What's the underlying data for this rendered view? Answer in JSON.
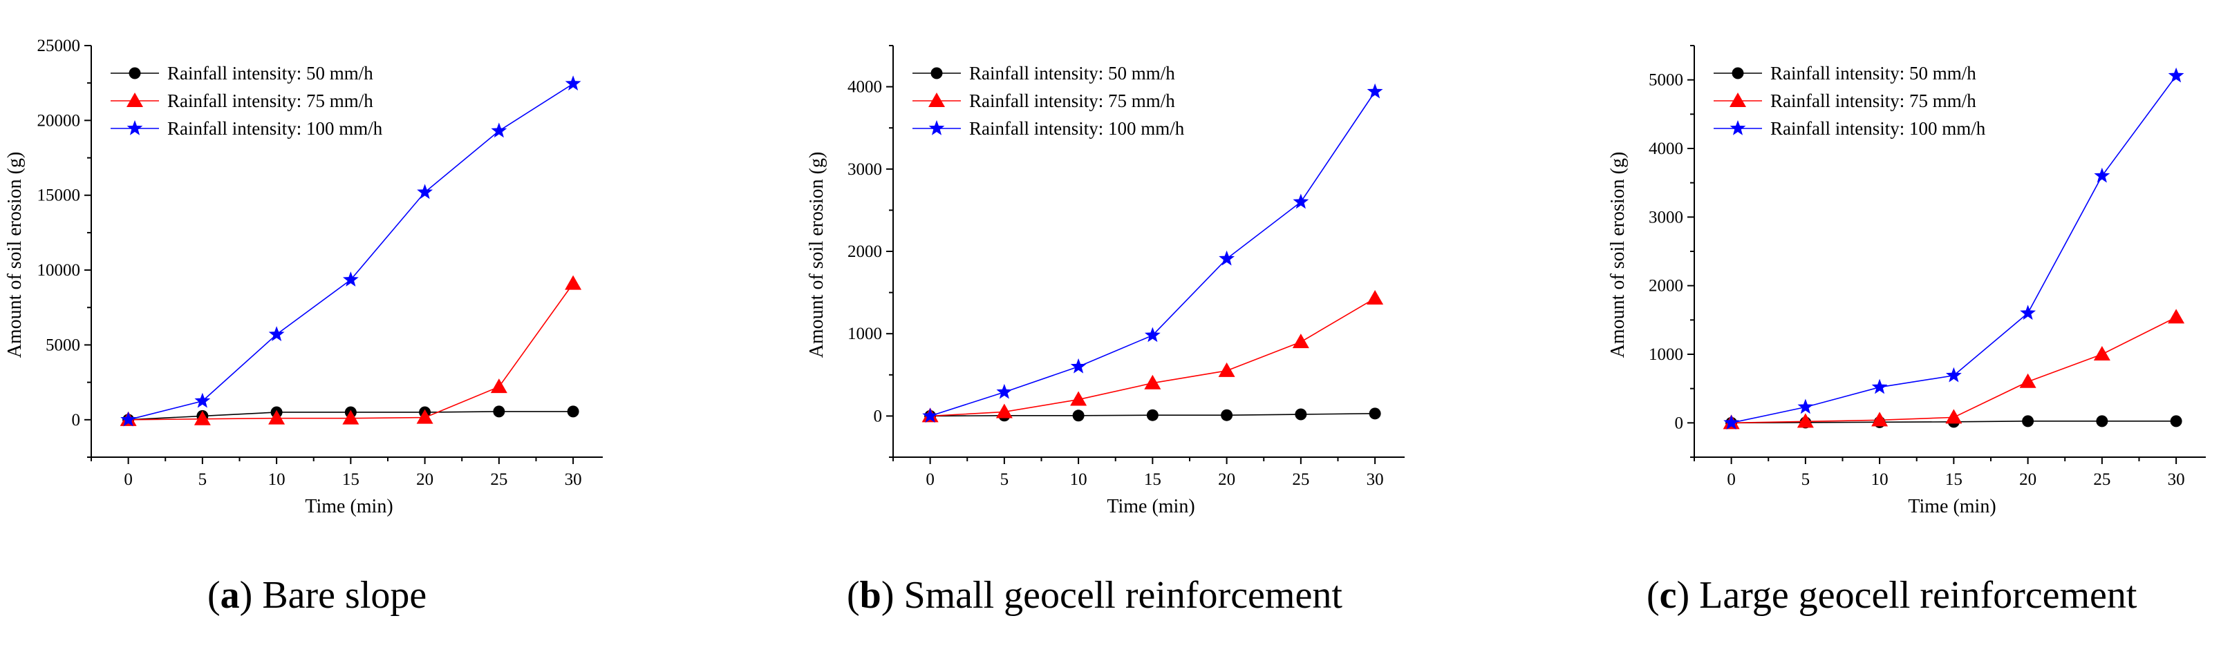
{
  "chart_data": [
    {
      "type": "line",
      "caption_letter": "a",
      "caption_text": "Bare slope",
      "xlabel": "Time (min)",
      "ylabel": "Amount of soil erosion (g)",
      "xlim": [
        -2.5,
        32
      ],
      "ylim": [
        -2500,
        25000
      ],
      "x": [
        0,
        5,
        10,
        15,
        20,
        25,
        30
      ],
      "xticks": [
        0,
        5,
        10,
        15,
        20,
        25,
        30
      ],
      "yticks": [
        0,
        5000,
        10000,
        15000,
        20000,
        25000
      ],
      "legend": "top-left",
      "grid": false,
      "series": [
        {
          "name": "Rainfall intensity: 50 mm/h",
          "color": "#000000",
          "marker": "circle",
          "values": [
            0,
            250,
            500,
            500,
            500,
            550,
            550
          ]
        },
        {
          "name": "Rainfall intensity: 75 mm/h",
          "color": "#ff0000",
          "marker": "triangle",
          "values": [
            0,
            50,
            100,
            100,
            150,
            2200,
            9100
          ]
        },
        {
          "name": "Rainfall intensity: 100 mm/h",
          "color": "#0000ff",
          "marker": "star",
          "values": [
            0,
            1250,
            5700,
            9350,
            15200,
            19300,
            22450
          ]
        }
      ]
    },
    {
      "type": "line",
      "caption_letter": "b",
      "caption_text": "Small geocell reinforcement",
      "xlabel": "Time (min)",
      "ylabel": "Amount of soil erosion (g)",
      "xlim": [
        -2.5,
        32
      ],
      "ylim": [
        -500,
        4500
      ],
      "x": [
        0,
        5,
        10,
        15,
        20,
        25,
        30
      ],
      "xticks": [
        0,
        5,
        10,
        15,
        20,
        25,
        30
      ],
      "yticks": [
        0,
        1000,
        2000,
        3000,
        4000
      ],
      "legend": "top-left",
      "grid": false,
      "series": [
        {
          "name": "Rainfall intensity: 50 mm/h",
          "color": "#000000",
          "marker": "circle",
          "values": [
            0,
            5,
            5,
            10,
            10,
            20,
            30
          ]
        },
        {
          "name": "Rainfall intensity: 75 mm/h",
          "color": "#ff0000",
          "marker": "triangle",
          "values": [
            0,
            50,
            200,
            400,
            550,
            900,
            1430
          ]
        },
        {
          "name": "Rainfall intensity: 100 mm/h",
          "color": "#0000ff",
          "marker": "star",
          "values": [
            0,
            290,
            600,
            980,
            1910,
            2600,
            3940
          ]
        }
      ]
    },
    {
      "type": "line",
      "caption_letter": "c",
      "caption_text": "Large geocell reinforcement",
      "xlabel": "Time (min)",
      "ylabel": "Amount of soil erosion (g)",
      "xlim": [
        -2.5,
        32
      ],
      "ylim": [
        -500,
        5500
      ],
      "x": [
        0,
        5,
        10,
        15,
        20,
        25,
        30
      ],
      "xticks": [
        0,
        5,
        10,
        15,
        20,
        25,
        30
      ],
      "yticks": [
        0,
        1000,
        2000,
        3000,
        4000,
        5000
      ],
      "legend": "top-left",
      "grid": false,
      "series": [
        {
          "name": "Rainfall intensity: 50 mm/h",
          "color": "#000000",
          "marker": "circle",
          "values": [
            0,
            5,
            10,
            15,
            25,
            25,
            25
          ]
        },
        {
          "name": "Rainfall intensity: 75 mm/h",
          "color": "#ff0000",
          "marker": "triangle",
          "values": [
            0,
            20,
            40,
            80,
            600,
            1000,
            1540
          ]
        },
        {
          "name": "Rainfall intensity: 100 mm/h",
          "color": "#0000ff",
          "marker": "star",
          "values": [
            0,
            230,
            520,
            690,
            1600,
            3600,
            5060
          ]
        }
      ]
    }
  ]
}
